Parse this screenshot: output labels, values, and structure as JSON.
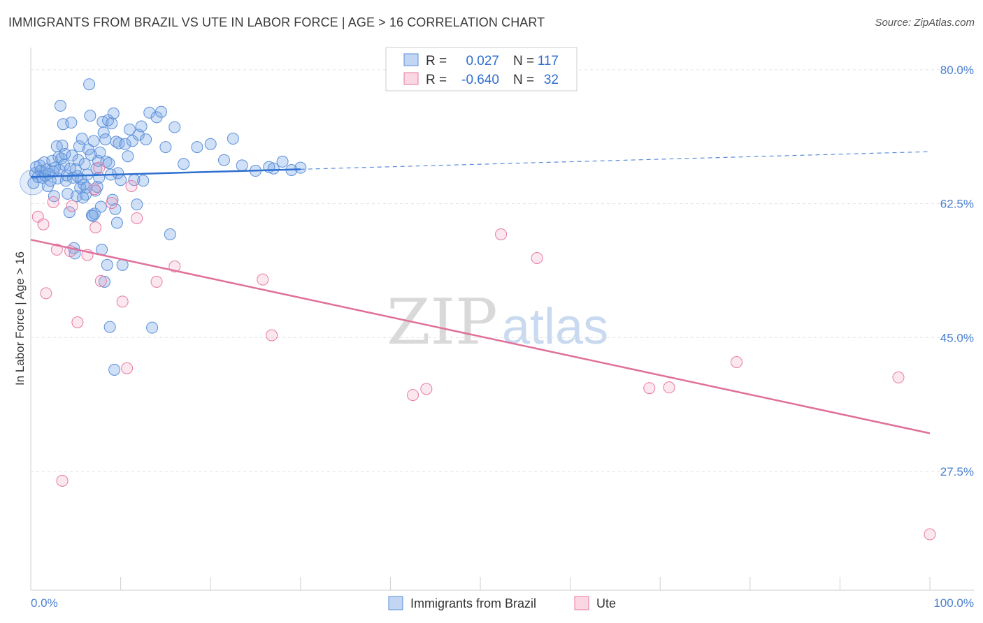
{
  "title": "IMMIGRANTS FROM BRAZIL VS UTE IN LABOR FORCE | AGE > 16 CORRELATION CHART",
  "source": "Source: ZipAtlas.com",
  "watermark": {
    "zip": "ZIP",
    "atlas": "atlas"
  },
  "colors": {
    "blue": "#5b8fd9",
    "blue_fill": "rgba(120,165,230,0.35)",
    "blue_line": "#2f6fd0",
    "pink": "#e87aa0",
    "pink_fill": "rgba(240,160,190,0.25)",
    "pink_line": "#e0709a"
  },
  "legend": {
    "rows": [
      {
        "r_label": "R =",
        "r_value": "0.027",
        "n_label": "N =",
        "n_value": "117"
      },
      {
        "r_label": "R =",
        "r_value": "-0.640",
        "n_label": "N =",
        "n_value": "32"
      }
    ]
  },
  "bottom_legend": [
    "Immigrants from Brazil",
    "Ute"
  ],
  "chart_data": {
    "type": "scatter",
    "title": "IMMIGRANTS FROM BRAZIL VS UTE IN LABOR FORCE | AGE > 16 CORRELATION CHART",
    "xlabel": "",
    "ylabel": "In Labor Force | Age > 16",
    "xlim": [
      0,
      100
    ],
    "ylim": [
      12,
      82
    ],
    "x_tick_labels": [
      "0.0%",
      "100.0%"
    ],
    "y_ticks": [
      27.5,
      45.0,
      62.5,
      80.0
    ],
    "y_tick_labels": [
      "27.5%",
      "45.0%",
      "62.5%",
      "80.0%"
    ],
    "series": [
      {
        "name": "Immigrants from Brazil",
        "r": 0.027,
        "n": 117,
        "trend": {
          "x0": 0,
          "y0": 66.0,
          "x1": 30,
          "y1": 67.0,
          "dashed_to_x": 100,
          "dashed_to_y": 69.3
        },
        "points": [
          [
            0.3,
            65.2
          ],
          [
            0.5,
            66.5
          ],
          [
            0.6,
            67.3
          ],
          [
            0.8,
            66.0
          ],
          [
            1.0,
            67.5
          ],
          [
            1.1,
            66.8
          ],
          [
            1.3,
            65.9
          ],
          [
            1.5,
            67.9
          ],
          [
            1.6,
            66.2
          ],
          [
            1.8,
            67.0
          ],
          [
            1.9,
            64.8
          ],
          [
            2.0,
            66.4
          ],
          [
            2.2,
            65.5
          ],
          [
            2.4,
            68.1
          ],
          [
            2.5,
            66.7
          ],
          [
            2.6,
            63.5
          ],
          [
            2.7,
            67.2
          ],
          [
            2.9,
            70.0
          ],
          [
            3.0,
            65.8
          ],
          [
            3.1,
            68.6
          ],
          [
            3.2,
            66.9
          ],
          [
            3.3,
            75.3
          ],
          [
            3.4,
            68.4
          ],
          [
            3.5,
            70.1
          ],
          [
            3.6,
            72.9
          ],
          [
            3.7,
            67.6
          ],
          [
            3.8,
            69.0
          ],
          [
            3.9,
            65.5
          ],
          [
            4.0,
            66.2
          ],
          [
            4.1,
            63.8
          ],
          [
            4.3,
            61.4
          ],
          [
            4.4,
            67.1
          ],
          [
            4.5,
            73.1
          ],
          [
            4.6,
            68.8
          ],
          [
            4.7,
            65.9
          ],
          [
            4.8,
            56.7
          ],
          [
            4.9,
            56.0
          ],
          [
            5.0,
            67.0
          ],
          [
            5.1,
            63.5
          ],
          [
            5.2,
            66.1
          ],
          [
            5.3,
            68.2
          ],
          [
            5.4,
            70.0
          ],
          [
            5.5,
            64.6
          ],
          [
            5.6,
            65.7
          ],
          [
            5.7,
            71.0
          ],
          [
            5.8,
            63.3
          ],
          [
            5.9,
            65.0
          ],
          [
            6.0,
            67.7
          ],
          [
            6.1,
            63.7
          ],
          [
            6.2,
            64.6
          ],
          [
            6.3,
            66.3
          ],
          [
            6.4,
            69.6
          ],
          [
            6.5,
            78.1
          ],
          [
            6.6,
            74.0
          ],
          [
            6.7,
            68.9
          ],
          [
            6.8,
            61.0
          ],
          [
            6.9,
            60.9
          ],
          [
            7.0,
            70.7
          ],
          [
            7.1,
            61.2
          ],
          [
            7.2,
            64.2
          ],
          [
            7.3,
            67.1
          ],
          [
            7.4,
            64.7
          ],
          [
            7.5,
            68.1
          ],
          [
            7.6,
            65.9
          ],
          [
            7.7,
            69.2
          ],
          [
            7.8,
            62.1
          ],
          [
            7.9,
            56.5
          ],
          [
            8.0,
            73.2
          ],
          [
            8.1,
            71.8
          ],
          [
            8.2,
            52.3
          ],
          [
            8.3,
            70.9
          ],
          [
            8.4,
            68.0
          ],
          [
            8.5,
            54.5
          ],
          [
            8.6,
            73.4
          ],
          [
            8.7,
            67.8
          ],
          [
            8.8,
            46.4
          ],
          [
            8.9,
            66.3
          ],
          [
            9.0,
            73.0
          ],
          [
            9.1,
            63.0
          ],
          [
            9.2,
            74.3
          ],
          [
            9.3,
            40.8
          ],
          [
            9.4,
            61.8
          ],
          [
            9.5,
            70.6
          ],
          [
            9.6,
            60.0
          ],
          [
            9.7,
            66.5
          ],
          [
            9.8,
            70.4
          ],
          [
            10.0,
            65.6
          ],
          [
            10.2,
            54.5
          ],
          [
            10.5,
            70.3
          ],
          [
            10.8,
            68.7
          ],
          [
            11.0,
            72.2
          ],
          [
            11.3,
            70.7
          ],
          [
            11.5,
            65.6
          ],
          [
            11.8,
            62.4
          ],
          [
            12.0,
            71.5
          ],
          [
            12.3,
            72.6
          ],
          [
            12.5,
            65.5
          ],
          [
            12.8,
            70.9
          ],
          [
            13.2,
            74.4
          ],
          [
            13.5,
            46.3
          ],
          [
            14.0,
            73.8
          ],
          [
            14.5,
            74.5
          ],
          [
            15.0,
            69.9
          ],
          [
            15.5,
            58.5
          ],
          [
            16.0,
            72.5
          ],
          [
            17.0,
            67.7
          ],
          [
            18.5,
            69.9
          ],
          [
            20.0,
            70.3
          ],
          [
            21.5,
            68.2
          ],
          [
            22.5,
            71.0
          ],
          [
            23.5,
            67.5
          ],
          [
            25.0,
            66.8
          ],
          [
            26.5,
            67.3
          ],
          [
            27.0,
            67.1
          ],
          [
            28.0,
            68.0
          ],
          [
            29.0,
            66.9
          ],
          [
            30.0,
            67.2
          ]
        ]
      },
      {
        "name": "Ute",
        "r": -0.64,
        "n": 32,
        "trend": {
          "x0": 0,
          "y0": 57.8,
          "x1": 100,
          "y1": 32.5
        },
        "points": [
          [
            0.8,
            60.8
          ],
          [
            1.4,
            59.8
          ],
          [
            1.7,
            50.8
          ],
          [
            2.5,
            62.7
          ],
          [
            2.9,
            56.5
          ],
          [
            3.5,
            26.3
          ],
          [
            4.4,
            56.3
          ],
          [
            4.6,
            62.2
          ],
          [
            5.2,
            47.0
          ],
          [
            6.3,
            55.8
          ],
          [
            7.2,
            59.4
          ],
          [
            7.6,
            67.2
          ],
          [
            7.8,
            52.4
          ],
          [
            7.1,
            64.4
          ],
          [
            9.0,
            62.6
          ],
          [
            10.2,
            49.7
          ],
          [
            10.7,
            41.0
          ],
          [
            11.2,
            64.8
          ],
          [
            11.8,
            60.6
          ],
          [
            14.0,
            52.3
          ],
          [
            16.0,
            54.3
          ],
          [
            25.8,
            52.6
          ],
          [
            26.8,
            45.3
          ],
          [
            42.5,
            37.5
          ],
          [
            44.0,
            38.3
          ],
          [
            52.3,
            58.5
          ],
          [
            56.3,
            55.4
          ],
          [
            68.8,
            38.4
          ],
          [
            71.0,
            38.5
          ],
          [
            78.5,
            41.8
          ],
          [
            96.5,
            39.8
          ],
          [
            100.0,
            19.3
          ]
        ]
      }
    ]
  }
}
